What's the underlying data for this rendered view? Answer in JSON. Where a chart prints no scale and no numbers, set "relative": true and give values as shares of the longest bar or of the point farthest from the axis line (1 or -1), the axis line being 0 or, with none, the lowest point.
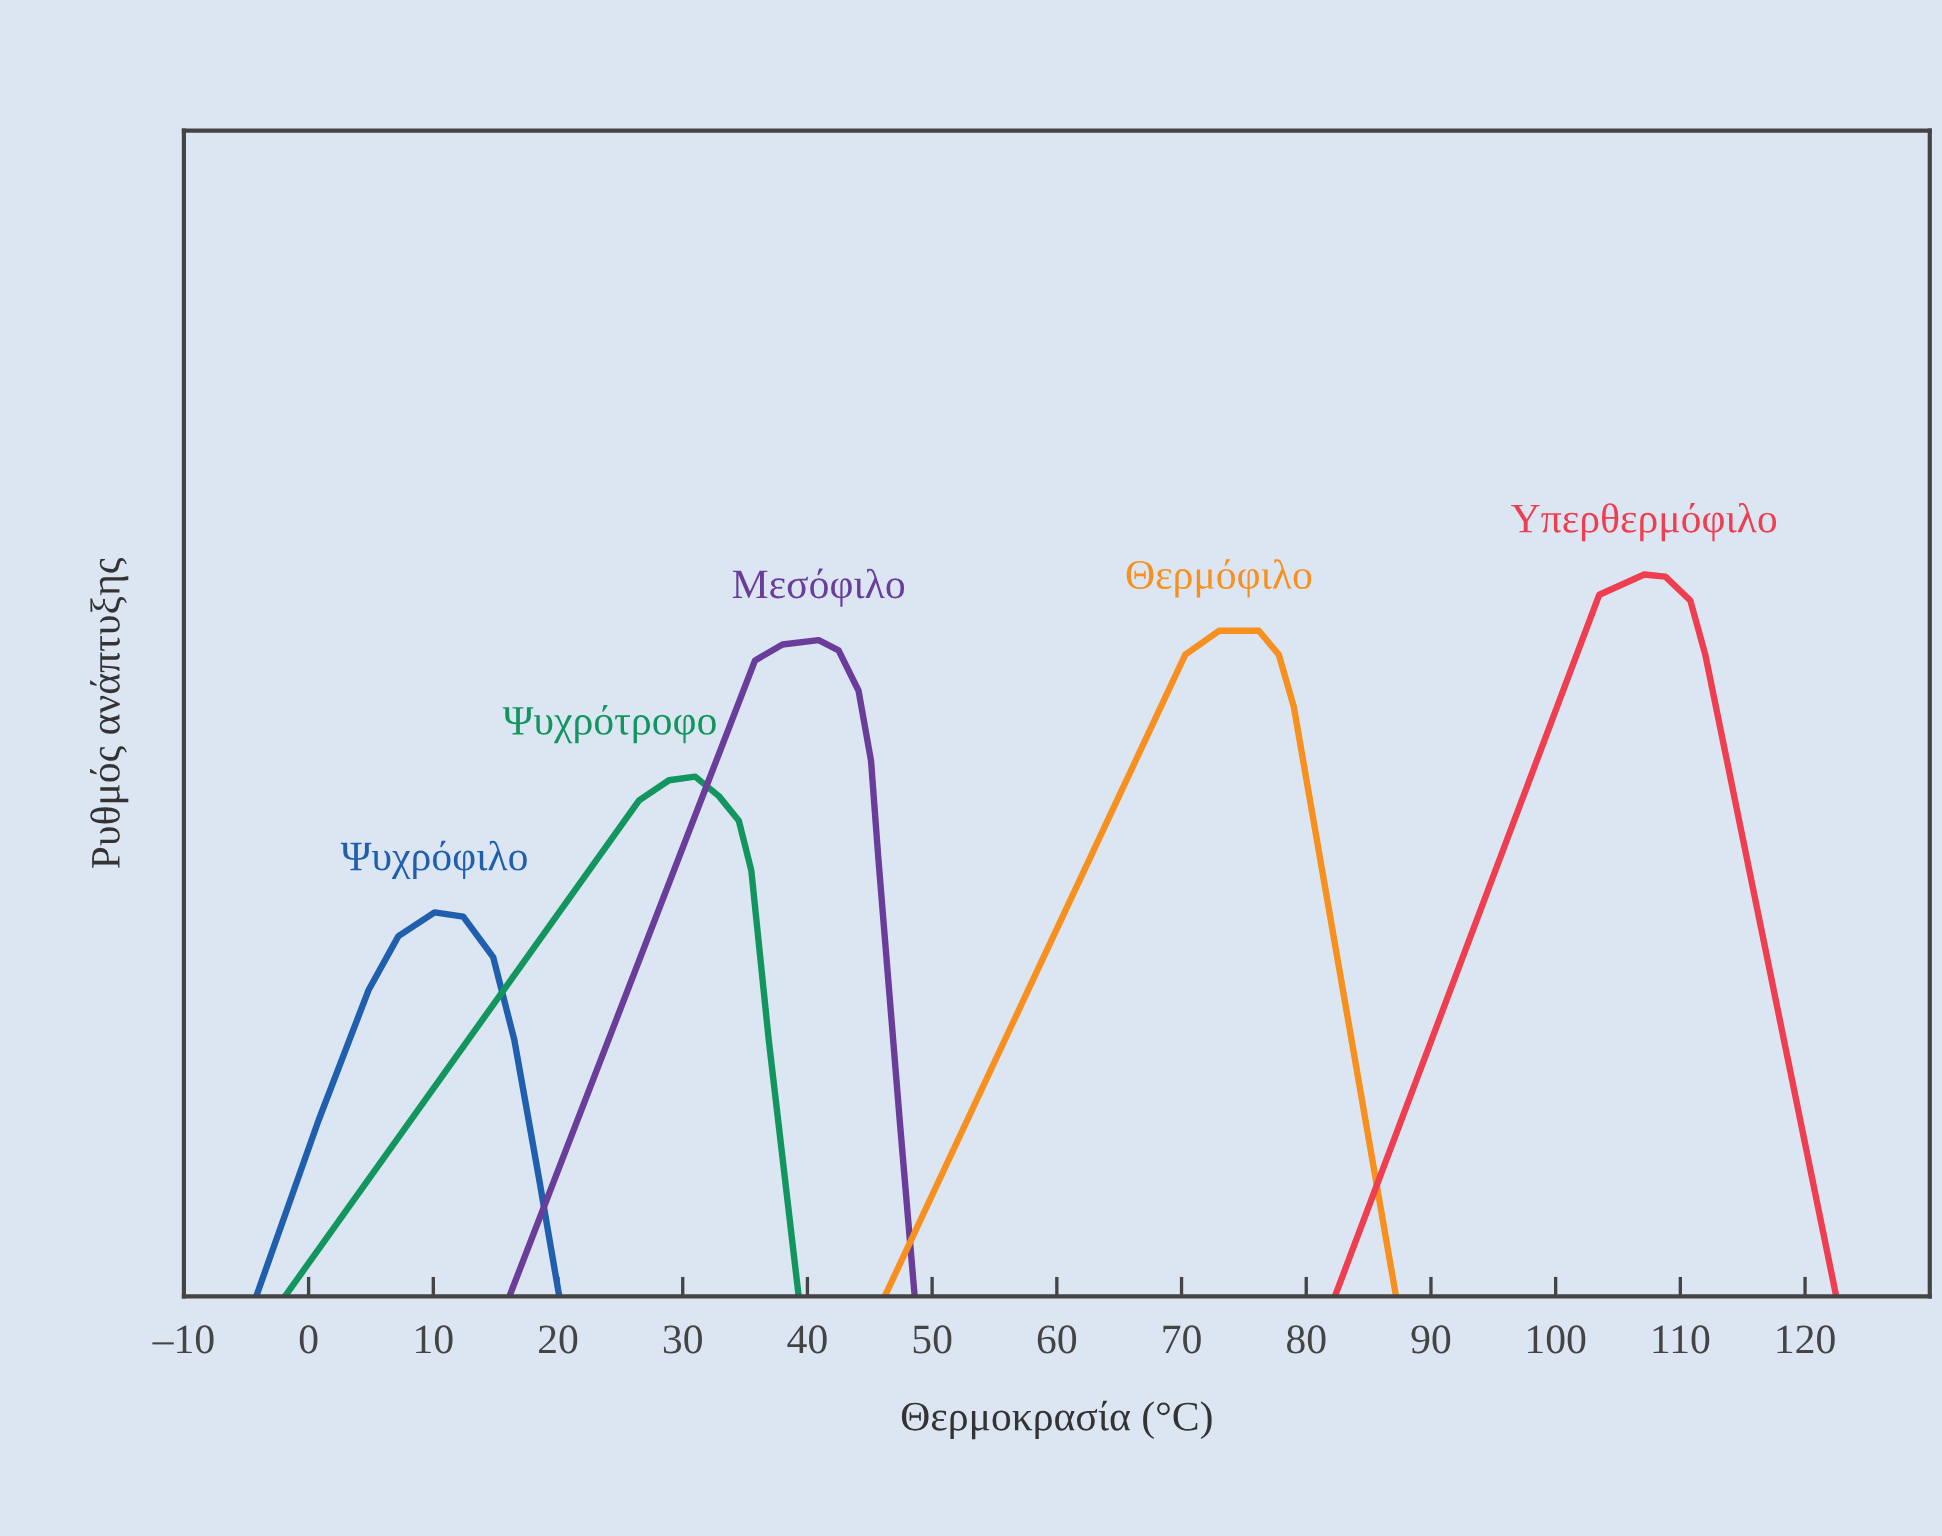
{
  "chart_data": {
    "type": "line",
    "relative": true,
    "xlabel": "Θερμοκρασία (°C)",
    "ylabel": "Ρυθμός ανάπτυξης",
    "xlim": [
      -10,
      130
    ],
    "xticks": [
      {
        "value": -10,
        "label": "–10"
      },
      0,
      10,
      20,
      30,
      40,
      50,
      60,
      70,
      80,
      90,
      100,
      110,
      120
    ],
    "tick_labels": "x",
    "grid": false,
    "marker": "none",
    "line_style": "solid",
    "series": [
      {
        "name": "Ψυχρόφιλο",
        "color": "#1f5fad",
        "x": [
          -4.2,
          0.8,
          4.8,
          7.2,
          10.1,
          12.4,
          14.8,
          16.5,
          18.5,
          20.1
        ],
        "values": [
          0,
          0.244,
          0.424,
          0.499,
          0.532,
          0.526,
          0.47,
          0.355,
          0.161,
          0
        ]
      },
      {
        "name": "Ψυχρότροφο",
        "color": "#12955f",
        "x": [
          -1.9,
          26.5,
          28.9,
          31.0,
          32.9,
          34.5,
          35.5,
          36.9,
          39.3
        ],
        "values": [
          0,
          0.687,
          0.715,
          0.72,
          0.693,
          0.659,
          0.59,
          0.355,
          0
        ]
      },
      {
        "name": "Μεσόφιλο",
        "color": "#6a3d9a",
        "x": [
          16.1,
          35.8,
          38.0,
          40.9,
          42.5,
          44.1,
          45.1,
          45.7,
          47.4,
          48.6
        ],
        "values": [
          0,
          0.881,
          0.903,
          0.909,
          0.895,
          0.839,
          0.742,
          0.604,
          0.244,
          0
        ]
      },
      {
        "name": "Θερμόφιλο",
        "color": "#f7901e",
        "x": [
          46.2,
          70.3,
          73.0,
          76.2,
          77.8,
          79.0,
          87.2
        ],
        "values": [
          0,
          0.889,
          0.922,
          0.922,
          0.889,
          0.817,
          0
        ]
      },
      {
        "name": "Υπερθερμόφιλο",
        "color": "#ee3e50",
        "x": [
          82.3,
          103.5,
          107.1,
          108.8,
          110.8,
          112.0,
          122.5
        ],
        "values": [
          0,
          0.972,
          1.0,
          0.997,
          0.964,
          0.889,
          0
        ]
      }
    ]
  }
}
